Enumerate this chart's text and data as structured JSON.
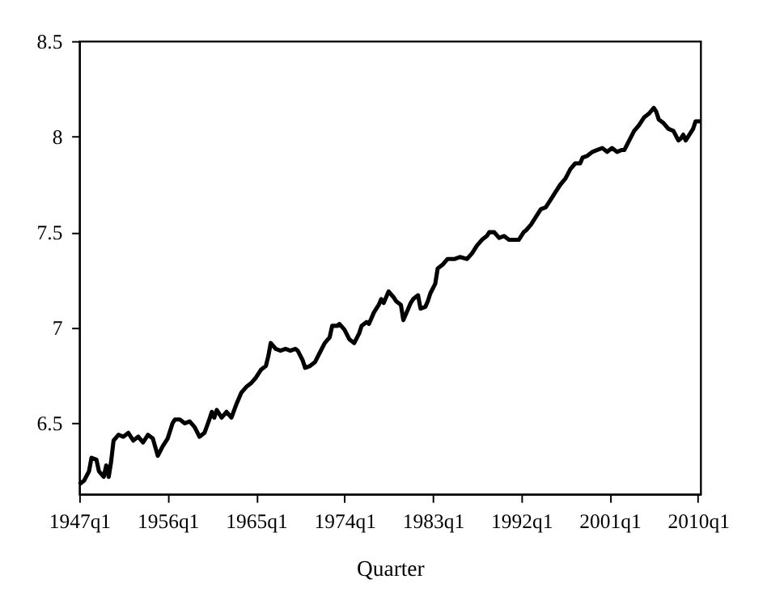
{
  "chart_data": {
    "type": "line",
    "xlabel": "Quarter",
    "xlim": [
      "1947-01",
      "2010-04"
    ],
    "ylim": [
      6.13,
      8.5
    ],
    "xticks": [
      {
        "value": "1947-01",
        "label": "1947q1"
      },
      {
        "value": "1956-01",
        "label": "1956q1"
      },
      {
        "value": "1965-01",
        "label": "1965q1"
      },
      {
        "value": "1974-01",
        "label": "1974q1"
      },
      {
        "value": "1983-01",
        "label": "1983q1"
      },
      {
        "value": "1992-01",
        "label": "1992q1"
      },
      {
        "value": "2001-01",
        "label": "2001q1"
      },
      {
        "value": "2010-01",
        "label": "2010q1"
      }
    ],
    "yticks": [
      6.5,
      7,
      7.5,
      8,
      8.5
    ],
    "grid": false,
    "legend": false,
    "marker": "none",
    "line_style": "solid",
    "x": [
      "1947-01",
      "1947-07",
      "1948-01",
      "1948-04",
      "1948-10",
      "1949-01",
      "1949-07",
      "1949-10",
      "1950-01",
      "1950-04",
      "1950-07",
      "1951-01",
      "1951-07",
      "1952-01",
      "1952-07",
      "1953-01",
      "1953-07",
      "1954-01",
      "1954-07",
      "1955-01",
      "1955-07",
      "1956-01",
      "1956-07",
      "1956-10",
      "1957-04",
      "1957-10",
      "1958-04",
      "1958-10",
      "1959-04",
      "1959-10",
      "1960-04",
      "1960-07",
      "1960-10",
      "1961-01",
      "1961-07",
      "1962-01",
      "1962-07",
      "1963-01",
      "1963-07",
      "1964-01",
      "1964-07",
      "1965-01",
      "1965-07",
      "1966-01",
      "1966-04",
      "1966-07",
      "1967-01",
      "1967-07",
      "1968-01",
      "1968-07",
      "1969-01",
      "1969-04",
      "1969-10",
      "1970-01",
      "1970-07",
      "1971-01",
      "1971-07",
      "1972-01",
      "1972-07",
      "1972-10",
      "1973-04",
      "1973-07",
      "1974-01",
      "1974-07",
      "1975-01",
      "1975-07",
      "1975-10",
      "1976-04",
      "1976-07",
      "1977-01",
      "1977-07",
      "1977-10",
      "1978-01",
      "1978-07",
      "1979-01",
      "1979-04",
      "1979-10",
      "1980-01",
      "1980-07",
      "1980-10",
      "1981-01",
      "1981-07",
      "1981-10",
      "1982-04",
      "1982-07",
      "1982-10",
      "1983-04",
      "1983-07",
      "1984-01",
      "1984-07",
      "1985-04",
      "1985-10",
      "1986-07",
      "1987-01",
      "1987-07",
      "1988-01",
      "1988-07",
      "1988-10",
      "1989-04",
      "1989-10",
      "1990-04",
      "1990-10",
      "1991-04",
      "1991-10",
      "1992-04",
      "1992-07",
      "1993-01",
      "1993-07",
      "1994-01",
      "1994-07",
      "1995-01",
      "1995-07",
      "1996-01",
      "1996-07",
      "1997-01",
      "1997-07",
      "1998-01",
      "1998-04",
      "1998-10",
      "1999-04",
      "1999-10",
      "2000-04",
      "2000-10",
      "2001-04",
      "2001-10",
      "2002-04",
      "2002-07",
      "2003-01",
      "2003-07",
      "2004-01",
      "2004-07",
      "2005-01",
      "2005-07",
      "2005-10",
      "2006-01",
      "2006-07",
      "2007-01",
      "2007-07",
      "2008-01",
      "2008-04",
      "2008-07",
      "2008-10",
      "2009-01",
      "2009-07",
      "2009-10",
      "2010-04"
    ],
    "series": [
      {
        "color": "#000000",
        "values": [
          6.18,
          6.2,
          6.25,
          6.32,
          6.31,
          6.25,
          6.22,
          6.28,
          6.22,
          6.3,
          6.41,
          6.44,
          6.43,
          6.45,
          6.41,
          6.43,
          6.4,
          6.44,
          6.42,
          6.33,
          6.38,
          6.42,
          6.5,
          6.52,
          6.52,
          6.5,
          6.51,
          6.48,
          6.43,
          6.45,
          6.52,
          6.56,
          6.53,
          6.57,
          6.53,
          6.56,
          6.53,
          6.6,
          6.66,
          6.69,
          6.71,
          6.74,
          6.78,
          6.8,
          6.85,
          6.92,
          6.89,
          6.88,
          6.89,
          6.88,
          6.89,
          6.88,
          6.83,
          6.79,
          6.8,
          6.82,
          6.87,
          6.92,
          6.95,
          7.01,
          7.01,
          7.02,
          6.99,
          6.94,
          6.92,
          6.97,
          7.01,
          7.03,
          7.02,
          7.08,
          7.12,
          7.15,
          7.13,
          7.19,
          7.16,
          7.14,
          7.12,
          7.04,
          7.1,
          7.13,
          7.15,
          7.17,
          7.1,
          7.11,
          7.14,
          7.18,
          7.23,
          7.31,
          7.33,
          7.36,
          7.36,
          7.37,
          7.36,
          7.39,
          7.43,
          7.46,
          7.48,
          7.5,
          7.5,
          7.47,
          7.48,
          7.46,
          7.46,
          7.46,
          7.5,
          7.51,
          7.54,
          7.58,
          7.62,
          7.63,
          7.67,
          7.71,
          7.75,
          7.78,
          7.83,
          7.86,
          7.86,
          7.89,
          7.9,
          7.92,
          7.93,
          7.94,
          7.92,
          7.94,
          7.92,
          7.93,
          7.93,
          7.98,
          8.03,
          8.06,
          8.1,
          8.12,
          8.15,
          8.13,
          8.09,
          8.07,
          8.04,
          8.03,
          7.98,
          7.99,
          8.01,
          7.98,
          8.0,
          8.04,
          8.08,
          8.08
        ]
      }
    ]
  }
}
